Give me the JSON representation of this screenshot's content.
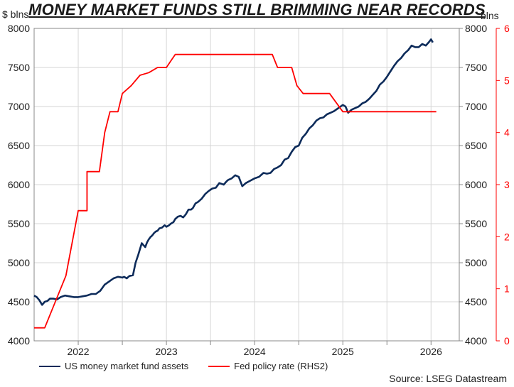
{
  "chart_data": {
    "type": "line",
    "title": "MONEY MARKET FUNDS STILL BRIMMING NEAR RECORDS",
    "left_axis": {
      "unit": "$ blns",
      "range": [
        4000,
        8000
      ],
      "ticks": [
        "4000",
        "4500",
        "5000",
        "5500",
        "6000",
        "6500",
        "7000",
        "7500",
        "8000"
      ]
    },
    "right_axis_1": {
      "unit": "blns",
      "range": [
        4000,
        8000
      ],
      "ticks": [
        "4000",
        "4500",
        "5000",
        "5500",
        "6000",
        "6500",
        "7000",
        "7500",
        "8000"
      ]
    },
    "right_axis_2": {
      "unit": "",
      "range": [
        0,
        6
      ],
      "ticks": [
        "0",
        "1",
        "2",
        "3",
        "4",
        "5",
        "6"
      ],
      "color": "#ff0000"
    },
    "x_axis": {
      "range": [
        2021.5,
        2026.32
      ],
      "ticks": [
        "2022",
        "2023",
        "2024",
        "2025",
        "2026"
      ]
    },
    "grid": true,
    "series": [
      {
        "name": "US money market fund assets",
        "axis": "left",
        "color": "#0d2b5a",
        "x": [
          2021.5,
          2021.53,
          2021.56,
          2021.59,
          2021.62,
          2021.65,
          2021.68,
          2021.72,
          2021.76,
          2021.8,
          2021.85,
          2021.9,
          2021.95,
          2022.0,
          2022.05,
          2022.1,
          2022.15,
          2022.2,
          2022.25,
          2022.3,
          2022.35,
          2022.4,
          2022.45,
          2022.5,
          2022.52,
          2022.55,
          2022.58,
          2022.62,
          2022.65,
          2022.68,
          2022.72,
          2022.76,
          2022.78,
          2022.8,
          2022.82,
          2022.84,
          2022.86,
          2022.88,
          2022.9,
          2022.92,
          2022.95,
          2022.98,
          2023.0,
          2023.03,
          2023.05,
          2023.08,
          2023.1,
          2023.13,
          2023.16,
          2023.19,
          2023.22,
          2023.25,
          2023.28,
          2023.3,
          2023.33,
          2023.36,
          2023.4,
          2023.44,
          2023.48,
          2023.52,
          2023.56,
          2023.6,
          2023.65,
          2023.68,
          2023.7,
          2023.74,
          2023.78,
          2023.82,
          2023.86,
          2023.9,
          2023.95,
          2024.0,
          2024.05,
          2024.1,
          2024.14,
          2024.18,
          2024.22,
          2024.26,
          2024.3,
          2024.34,
          2024.38,
          2024.42,
          2024.46,
          2024.5,
          2024.54,
          2024.58,
          2024.62,
          2024.66,
          2024.7,
          2024.74,
          2024.78,
          2024.82,
          2024.86,
          2024.9,
          2024.95,
          2025.0,
          2025.03,
          2025.06,
          2025.1,
          2025.14,
          2025.18,
          2025.22,
          2025.26,
          2025.3,
          2025.34,
          2025.38,
          2025.42,
          2025.46,
          2025.5,
          2025.54,
          2025.58,
          2025.62,
          2025.66,
          2025.7,
          2025.74,
          2025.78,
          2025.82,
          2025.86,
          2025.9,
          2025.94,
          2025.98,
          2026.0,
          2026.02
        ],
        "values": [
          4580,
          4560,
          4520,
          4460,
          4500,
          4510,
          4540,
          4540,
          4530,
          4560,
          4580,
          4570,
          4560,
          4560,
          4570,
          4580,
          4600,
          4600,
          4640,
          4720,
          4760,
          4800,
          4820,
          4810,
          4820,
          4800,
          4830,
          4840,
          5000,
          5100,
          5250,
          5200,
          5260,
          5300,
          5330,
          5350,
          5380,
          5400,
          5410,
          5440,
          5450,
          5480,
          5460,
          5480,
          5500,
          5520,
          5560,
          5590,
          5600,
          5580,
          5620,
          5680,
          5680,
          5700,
          5760,
          5780,
          5820,
          5880,
          5920,
          5950,
          5960,
          6020,
          6000,
          6040,
          6060,
          6080,
          6120,
          6100,
          5980,
          6020,
          6050,
          6080,
          6100,
          6150,
          6140,
          6150,
          6200,
          6220,
          6250,
          6320,
          6340,
          6420,
          6480,
          6500,
          6600,
          6650,
          6720,
          6760,
          6820,
          6850,
          6860,
          6900,
          6920,
          6940,
          6980,
          7020,
          7000,
          6920,
          6960,
          6980,
          7000,
          7040,
          7060,
          7100,
          7150,
          7200,
          7280,
          7320,
          7380,
          7450,
          7520,
          7580,
          7620,
          7680,
          7720,
          7780,
          7760,
          7760,
          7800,
          7780,
          7830,
          7860,
          7820
        ]
      },
      {
        "name": "Fed policy rate (RHS2)",
        "axis": "right2",
        "color": "#ff0000",
        "x": [
          2021.5,
          2021.62,
          2021.62,
          2021.86,
          2022.0,
          2022.0,
          2022.1,
          2022.1,
          2022.24,
          2022.3,
          2022.36,
          2022.45,
          2022.5,
          2022.6,
          2022.7,
          2022.8,
          2022.9,
          2023.0,
          2023.06,
          2023.1,
          2023.28,
          2023.35,
          2024.0,
          2024.2,
          2024.26,
          2024.3,
          2024.42,
          2024.48,
          2024.55,
          2024.7,
          2024.85,
          2025.0,
          2025.2,
          2025.4,
          2025.7,
          2025.8,
          2025.9,
          2025.93,
          2026.0,
          2026.06
        ],
        "values": [
          0.25,
          0.25,
          0.25,
          1.25,
          2.5,
          2.5,
          2.5,
          3.25,
          3.25,
          4.0,
          4.4,
          4.4,
          4.75,
          4.9,
          5.1,
          5.15,
          5.25,
          5.25,
          5.4,
          5.5,
          5.5,
          5.5,
          5.5,
          5.5,
          5.25,
          5.25,
          5.25,
          4.9,
          4.75,
          4.75,
          4.75,
          4.4,
          4.4,
          4.4,
          4.4,
          4.4,
          4.4,
          4.4,
          4.4,
          4.4
        ]
      }
    ],
    "legend_position": "bottom-left",
    "source": "Source: LSEG Datastream"
  }
}
